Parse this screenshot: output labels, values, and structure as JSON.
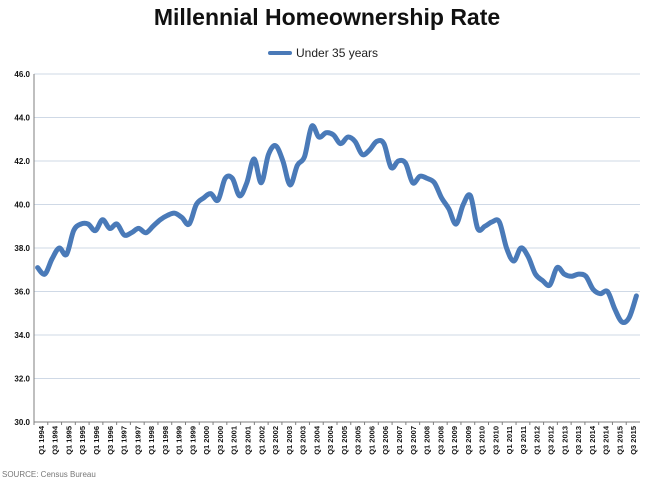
{
  "colors": {
    "series": "#4a7ab8",
    "grid": "#cfd9e6",
    "axis": "#7f7f7f",
    "text": "#111111"
  },
  "chart_data": {
    "type": "line",
    "title": "Millennial Homeownership Rate",
    "legend": "top-center",
    "grid": true,
    "ylim": [
      30.0,
      46.0
    ],
    "yticks": [
      "30.0",
      "32.0",
      "34.0",
      "36.0",
      "38.0",
      "40.0",
      "42.0",
      "44.0",
      "46.0"
    ],
    "xlabels": [
      "Q1 1994",
      "Q3 1994",
      "Q1 1995",
      "Q3 1995",
      "Q1 1996",
      "Q3 1996",
      "Q1 1997",
      "Q3 1997",
      "Q1 1998",
      "Q3 1998",
      "Q1 1999",
      "Q3 1999",
      "Q1 2000",
      "Q3 2000",
      "Q1 2001",
      "Q3 2001",
      "Q1 2002",
      "Q3 2002",
      "Q1 2003",
      "Q3 2003",
      "Q1 2004",
      "Q3 2004",
      "Q1 2005",
      "Q3 2005",
      "Q1 2006",
      "Q3 2006",
      "Q1 2007",
      "Q3 2007",
      "Q1 2008",
      "Q3 2008",
      "Q1 2009",
      "Q3 2009",
      "Q1 2010",
      "Q3 2010",
      "Q1 2011",
      "Q3 2011",
      "Q1 2012",
      "Q3 2012",
      "Q1 2013",
      "Q3 2013",
      "Q1 2014",
      "Q3 2014",
      "Q1 2015",
      "Q3 2015"
    ],
    "series": [
      {
        "name": "Under 35 years",
        "values": [
          37.1,
          36.8,
          37.5,
          38.0,
          37.7,
          38.8,
          39.1,
          39.1,
          38.8,
          39.3,
          38.9,
          39.1,
          38.6,
          38.7,
          38.9,
          38.7,
          39.0,
          39.3,
          39.5,
          39.6,
          39.4,
          39.1,
          40.0,
          40.3,
          40.5,
          40.2,
          41.2,
          41.2,
          40.4,
          41.0,
          42.1,
          41.0,
          42.3,
          42.7,
          42.0,
          40.9,
          41.8,
          42.2,
          43.6,
          43.1,
          43.3,
          43.2,
          42.8,
          43.1,
          42.9,
          42.3,
          42.5,
          42.9,
          42.8,
          41.7,
          42.0,
          41.9,
          41.0,
          41.3,
          41.2,
          41.0,
          40.3,
          39.8,
          39.1,
          40.0,
          40.4,
          38.9,
          39.0,
          39.2,
          39.2,
          38.0,
          37.4,
          38.0,
          37.6,
          36.8,
          36.5,
          36.3,
          37.1,
          36.8,
          36.7,
          36.8,
          36.7,
          36.1,
          35.9,
          36.0,
          35.2,
          34.6,
          34.8,
          35.8
        ]
      }
    ]
  },
  "source_text": "SOURCE: Census Bureau"
}
